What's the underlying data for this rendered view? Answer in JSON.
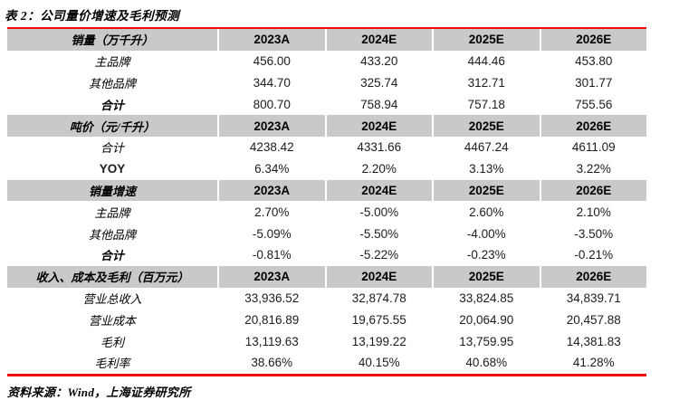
{
  "title": "表 2：公司量价增速及毛利预测",
  "source": "资料来源：Wind，上海证券研究所",
  "colors": {
    "accent_red": "#f20d0d",
    "header_gray": "#c9c9c9",
    "text": "#1c1c1c"
  },
  "table": {
    "type": "table",
    "columns": [
      "2023A",
      "2024E",
      "2025E",
      "2026E"
    ],
    "sections": [
      {
        "header": "销量（万千升）",
        "rows": [
          {
            "label": "主品牌",
            "values": [
              "456.00",
              "433.20",
              "444.46",
              "453.80"
            ]
          },
          {
            "label": "其他品牌",
            "values": [
              "344.70",
              "325.74",
              "312.71",
              "301.77"
            ]
          },
          {
            "label": "合计",
            "values": [
              "800.70",
              "758.94",
              "757.18",
              "755.56"
            ]
          }
        ]
      },
      {
        "header": "吨价（元/千升）",
        "rows": [
          {
            "label": "合计",
            "values": [
              "4238.42",
              "4331.66",
              "4467.24",
              "4611.09"
            ]
          },
          {
            "label": "YOY",
            "values": [
              "6.34%",
              "2.20%",
              "3.13%",
              "3.22%"
            ]
          }
        ]
      },
      {
        "header": "销量增速",
        "rows": [
          {
            "label": "主品牌",
            "values": [
              "2.70%",
              "-5.00%",
              "2.60%",
              "2.10%"
            ]
          },
          {
            "label": "其他品牌",
            "values": [
              "-5.09%",
              "-5.50%",
              "-4.00%",
              "-3.50%"
            ]
          },
          {
            "label": "合计",
            "values": [
              "-0.81%",
              "-5.22%",
              "-0.23%",
              "-0.21%"
            ]
          }
        ]
      },
      {
        "header": "收入、成本及毛利（百万元）",
        "rows": [
          {
            "label": "营业总收入",
            "values": [
              "33,936.52",
              "32,874.78",
              "33,824.85",
              "34,839.71"
            ]
          },
          {
            "label": "营业成本",
            "values": [
              "20,816.89",
              "19,675.55",
              "20,064.90",
              "20,457.88"
            ]
          },
          {
            "label": "毛利",
            "values": [
              "13,119.63",
              "13,199.22",
              "13,759.95",
              "14,381.83"
            ]
          },
          {
            "label": "毛利率",
            "values": [
              "38.66%",
              "40.15%",
              "40.68%",
              "41.28%"
            ]
          }
        ]
      }
    ]
  }
}
